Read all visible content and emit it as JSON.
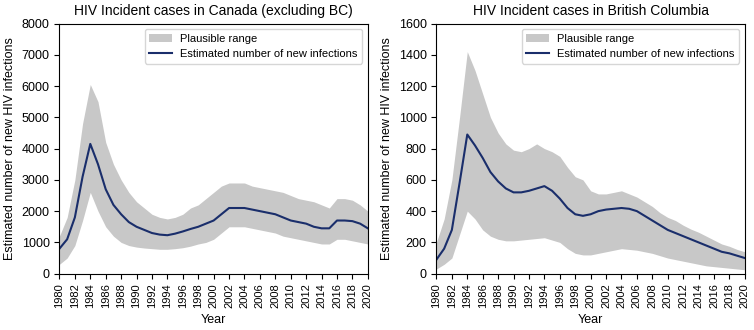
{
  "chart_data": [
    {
      "type": "line",
      "title": "HIV Incident cases in Canada (excluding BC)",
      "xlabel": "Year",
      "ylabel": "Estimated number of new HIV infections",
      "x": [
        1980,
        1981,
        1982,
        1983,
        1984,
        1985,
        1986,
        1987,
        1988,
        1989,
        1990,
        1991,
        1992,
        1993,
        1994,
        1995,
        1996,
        1997,
        1998,
        1999,
        2000,
        2001,
        2002,
        2003,
        2004,
        2005,
        2006,
        2007,
        2008,
        2009,
        2010,
        2011,
        2012,
        2013,
        2014,
        2015,
        2016,
        2017,
        2018,
        2019,
        2020
      ],
      "xlim": [
        1980,
        2020
      ],
      "xticks": [
        1980,
        1982,
        1984,
        1986,
        1988,
        1990,
        1992,
        1994,
        1996,
        1998,
        2000,
        2002,
        2004,
        2006,
        2008,
        2010,
        2012,
        2014,
        2016,
        2018,
        2020
      ],
      "ylim": [
        0,
        8000
      ],
      "yticks": [
        0,
        1000,
        2000,
        3000,
        4000,
        5000,
        6000,
        7000,
        8000
      ],
      "legend": "upper right",
      "series": [
        {
          "name": "Plausible range",
          "type": "band",
          "color": "#c8c8c8",
          "lower": [
            300,
            500,
            900,
            1700,
            2600,
            2000,
            1500,
            1200,
            1000,
            900,
            850,
            820,
            800,
            780,
            780,
            800,
            830,
            880,
            950,
            1000,
            1100,
            1300,
            1500,
            1500,
            1500,
            1450,
            1400,
            1350,
            1300,
            1200,
            1150,
            1100,
            1050,
            1000,
            950,
            950,
            1100,
            1100,
            1050,
            1000,
            950
          ],
          "upper": [
            1200,
            1800,
            3000,
            4800,
            6050,
            5500,
            4200,
            3500,
            3000,
            2600,
            2300,
            2100,
            1900,
            1800,
            1750,
            1800,
            1900,
            2100,
            2200,
            2400,
            2600,
            2800,
            2900,
            2900,
            2900,
            2800,
            2750,
            2700,
            2650,
            2600,
            2500,
            2400,
            2350,
            2300,
            2200,
            2100,
            2400,
            2400,
            2350,
            2200,
            2000
          ]
        },
        {
          "name": "Estimated number of new infections",
          "type": "line",
          "color": "#1a2e6b",
          "values": [
            800,
            1100,
            1800,
            3100,
            4150,
            3500,
            2700,
            2200,
            1900,
            1650,
            1500,
            1400,
            1300,
            1250,
            1230,
            1280,
            1350,
            1430,
            1500,
            1600,
            1700,
            1900,
            2100,
            2100,
            2100,
            2050,
            2000,
            1950,
            1900,
            1800,
            1700,
            1650,
            1600,
            1500,
            1450,
            1450,
            1700,
            1700,
            1680,
            1600,
            1450
          ]
        }
      ]
    },
    {
      "type": "line",
      "title": "HIV Incident cases in British Columbia",
      "xlabel": "Year",
      "ylabel": "Estimated number of new HIV infections",
      "x": [
        1980,
        1981,
        1982,
        1983,
        1984,
        1985,
        1986,
        1987,
        1988,
        1989,
        1990,
        1991,
        1992,
        1993,
        1994,
        1995,
        1996,
        1997,
        1998,
        1999,
        2000,
        2001,
        2002,
        2003,
        2004,
        2005,
        2006,
        2007,
        2008,
        2009,
        2010,
        2011,
        2012,
        2013,
        2014,
        2015,
        2016,
        2017,
        2018,
        2019,
        2020
      ],
      "xlim": [
        1980,
        2020
      ],
      "xticks": [
        1980,
        1982,
        1984,
        1986,
        1988,
        1990,
        1992,
        1994,
        1996,
        1998,
        2000,
        2002,
        2004,
        2006,
        2008,
        2010,
        2012,
        2014,
        2016,
        2018,
        2020
      ],
      "ylim": [
        0,
        1600
      ],
      "yticks": [
        0,
        200,
        400,
        600,
        800,
        1000,
        1200,
        1400,
        1600
      ],
      "legend": "upper right",
      "series": [
        {
          "name": "Plausible range",
          "type": "band",
          "color": "#c8c8c8",
          "lower": [
            30,
            60,
            100,
            250,
            400,
            350,
            280,
            240,
            220,
            210,
            210,
            215,
            220,
            225,
            230,
            215,
            200,
            160,
            130,
            120,
            120,
            130,
            140,
            150,
            160,
            155,
            150,
            140,
            130,
            115,
            100,
            90,
            80,
            70,
            60,
            50,
            45,
            40,
            35,
            30,
            25
          ],
          "upper": [
            200,
            350,
            600,
            1000,
            1420,
            1300,
            1150,
            1000,
            900,
            830,
            790,
            780,
            800,
            830,
            800,
            780,
            750,
            680,
            620,
            600,
            530,
            510,
            510,
            520,
            530,
            510,
            490,
            460,
            430,
            390,
            360,
            340,
            310,
            285,
            265,
            240,
            215,
            190,
            175,
            155,
            140
          ]
        },
        {
          "name": "Estimated number of new infections",
          "type": "line",
          "color": "#1a2e6b",
          "values": [
            90,
            160,
            280,
            580,
            890,
            820,
            740,
            650,
            590,
            545,
            520,
            520,
            530,
            545,
            560,
            530,
            480,
            420,
            380,
            370,
            380,
            400,
            410,
            415,
            420,
            415,
            400,
            370,
            340,
            310,
            280,
            260,
            240,
            220,
            200,
            180,
            160,
            140,
            130,
            115,
            100
          ]
        }
      ]
    }
  ]
}
